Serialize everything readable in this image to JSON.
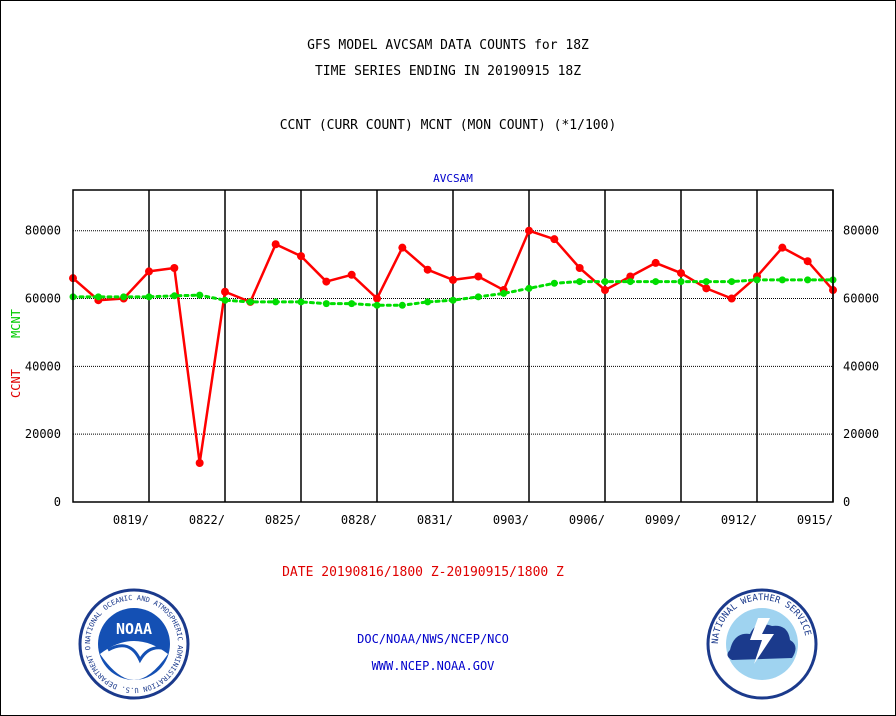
{
  "header": {
    "title_line1": "GFS MODEL AVCSAM DATA COUNTS for 18Z",
    "title_line2": "TIME SERIES ENDING IN 20190915 18Z",
    "subtitle": "CCNT (CURR COUNT) MCNT (MON COUNT) (*1/100)"
  },
  "footer": {
    "date_range": "DATE 20190816/1800 Z-20190915/1800 Z",
    "credit_line1": "DOC/NOAA/NWS/NCEP/NCO",
    "credit_line2": "WWW.NCEP.NOAA.GOV"
  },
  "logos": {
    "noaa_badge_text": "NOAA",
    "noaa_ring_text": "NATIONAL OCEANIC AND ATMOSPHERIC ADMINISTRATION U.S. DEPARTMENT OF COMMERCE",
    "nws_ring_text": "NATIONAL WEATHER SERVICE"
  },
  "chart_data": {
    "type": "line",
    "panel_label": "AVCSAM",
    "ylabel_left": "CCNT",
    "ylabel_right": "MCNT",
    "ylim": [
      0,
      92000
    ],
    "yticks": [
      0,
      20000,
      40000,
      60000,
      80000
    ],
    "ytick_labels": [
      "0",
      "20000",
      "40000",
      "60000",
      "80000"
    ],
    "xlim": [
      0,
      30
    ],
    "xticks": [
      3,
      6,
      9,
      12,
      15,
      18,
      21,
      24,
      27,
      30
    ],
    "xtick_labels": [
      "0819/",
      "0822/",
      "0825/",
      "0828/",
      "0831/",
      "0903/",
      "0906/",
      "0909/",
      "0912/",
      "0915/"
    ],
    "grid": true,
    "series": [
      {
        "name": "CCNT",
        "color": "#ff0000",
        "style": "solid",
        "x": [
          0,
          1,
          2,
          3,
          4,
          5,
          6,
          7,
          8,
          9,
          10,
          11,
          12,
          13,
          14,
          15,
          16,
          17,
          18,
          19,
          20,
          21,
          22,
          23,
          24,
          25,
          26,
          27,
          28,
          29,
          30
        ],
        "values": [
          66000,
          59500,
          60000,
          68000,
          69000,
          11500,
          62000,
          59000,
          76000,
          72500,
          65000,
          67000,
          60000,
          75000,
          68500,
          65500,
          66500,
          62500,
          80000,
          77500,
          69000,
          62500,
          66500,
          70500,
          67500,
          63000,
          60000,
          66500,
          75000,
          71000,
          62500
        ]
      },
      {
        "name": "MCNT",
        "color": "#00dd00",
        "style": "dotted",
        "x": [
          0,
          1,
          2,
          3,
          4,
          5,
          6,
          7,
          8,
          9,
          10,
          11,
          12,
          13,
          14,
          15,
          16,
          17,
          18,
          19,
          20,
          21,
          22,
          23,
          24,
          25,
          26,
          27,
          28,
          29,
          30
        ],
        "values": [
          60500,
          60500,
          60500,
          60500,
          60800,
          61000,
          59500,
          59000,
          59000,
          59000,
          58500,
          58500,
          58000,
          58000,
          59000,
          59500,
          60500,
          61500,
          63000,
          64500,
          65000,
          65000,
          65000,
          65000,
          65000,
          65000,
          65000,
          65500,
          65500,
          65500,
          65500
        ]
      }
    ]
  }
}
